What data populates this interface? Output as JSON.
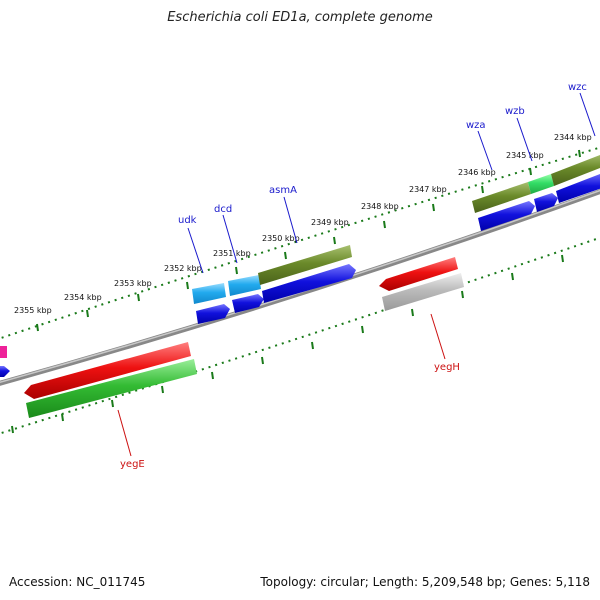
{
  "title": "Escherichia coli ED1a, complete genome",
  "footer": {
    "accession": "Accession: NC_011745",
    "topology": "Topology: circular; Length: 5,209,548 bp; Genes: 5,118"
  },
  "colors": {
    "backbone": "#808080",
    "tick": "#1a7a1a",
    "cds_red": "#ee1111",
    "gene_green": "#33bb33",
    "olive": "#6b8a2a",
    "blue": "#1111dd",
    "cyan": "#22aaee",
    "gray": "#bbbbbb",
    "magenta": "#ee2299",
    "label_blue": "#1a1acc",
    "label_red": "#cc1111"
  },
  "scale_labels": [
    "2355 kbp",
    "2354 kbp",
    "2353 kbp",
    "2352 kbp",
    "2351 kbp",
    "2350 kbp",
    "2349 kbp",
    "2348 kbp",
    "2347 kbp",
    "2346 kbp",
    "2345 kbp",
    "2344 kbp"
  ],
  "genes": {
    "udk": "udk",
    "dcd": "dcd",
    "asmA": "asmA",
    "wza": "wza",
    "wzb": "wzb",
    "wzc": "wzc",
    "yegE": "yegE",
    "yegH": "yegH"
  }
}
